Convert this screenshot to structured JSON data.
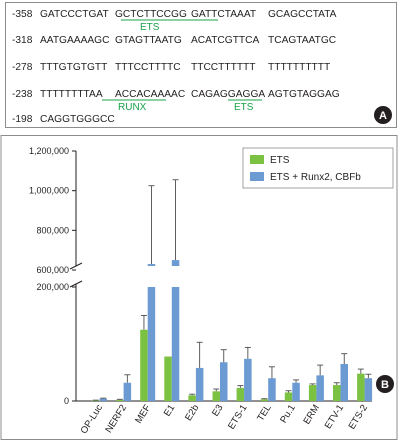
{
  "panel_a": {
    "label": "A",
    "rows": [
      {
        "pos": "-358",
        "segments": [
          "GATCCCTGAT",
          "GCTCTTCCGG",
          "GATTCTAAAT",
          "GCAGCCTATA"
        ]
      },
      {
        "pos": "-318",
        "segments": [
          "AATGAAAAGC",
          "GTAGTTAATG",
          "ACATCGTTCA",
          "TCAGTAATGC"
        ]
      },
      {
        "pos": "-278",
        "segments": [
          "TTTGTGTGTT",
          "TTTCCTTTTC",
          "TTCCTTTTTT",
          "TTTTTTTTTT"
        ]
      },
      {
        "pos": "-238",
        "segments": [
          "TTTTTTTTAA",
          "ACCACAAAAC",
          "CAGAGGAGGA",
          "AGTGTAGGAG"
        ]
      },
      {
        "pos": "-198",
        "segments": [
          "CAGGTGGGCC"
        ]
      }
    ],
    "sites": [
      {
        "name": "ETS",
        "row": 0
      },
      {
        "name": "RUNX",
        "row": 3
      },
      {
        "name": "ETS",
        "row": 3
      }
    ],
    "site_color": "#17a34a"
  },
  "panel_b_label": "B",
  "chart_data": {
    "type": "bar",
    "broken_y_axis": true,
    "ylim_lower": [
      0,
      200000
    ],
    "ylim_upper": [
      600000,
      1200000
    ],
    "yticks_lower": [
      "0",
      "200,000"
    ],
    "yticks_upper": [
      "600,000",
      "800,000",
      "1,000,000",
      "1,200,000"
    ],
    "categories": [
      "OP-Luc",
      "NERF2",
      "MEF",
      "E1",
      "E2b",
      "E3",
      "ETS-1",
      "TEL",
      "Pu.1",
      "ERM",
      "ETV-1",
      "ETS-2"
    ],
    "series": [
      {
        "name": "ETS",
        "color": "#7cc242",
        "values": [
          1000,
          2000,
          125000,
          78000,
          10000,
          17000,
          23000,
          3000,
          15000,
          28000,
          28000,
          48000
        ],
        "errors": [
          500,
          1000,
          25000,
          0,
          2000,
          4000,
          4000,
          1000,
          3000,
          2000,
          4000,
          8000
        ]
      },
      {
        "name": "ETS + Runx2, CBFb",
        "color": "#6b9bd2",
        "values": [
          4000,
          32000,
          630000,
          650000,
          58000,
          68000,
          74000,
          40000,
          32000,
          45000,
          65000,
          40000
        ],
        "errors": [
          1000,
          14000,
          395000,
          405000,
          45000,
          22000,
          20000,
          20000,
          5000,
          18000,
          18000,
          7000
        ]
      }
    ],
    "legend_position": "top-right",
    "grid": false
  }
}
